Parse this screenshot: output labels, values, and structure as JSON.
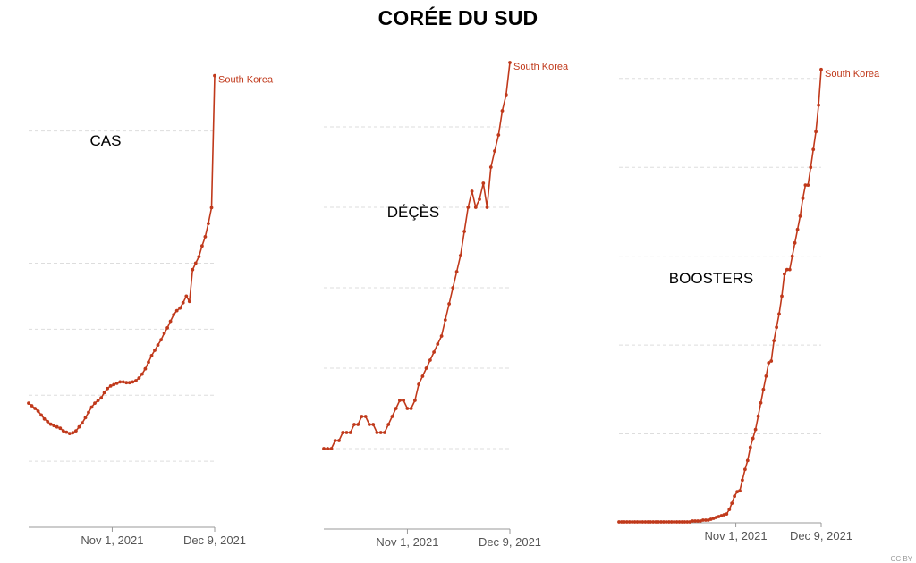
{
  "title": "CORÉE DU SUD",
  "license": "CC BY",
  "colors": {
    "line": "#c0391b",
    "grid": "#dddddd",
    "axis": "#999999"
  },
  "chart_data": [
    {
      "type": "line",
      "overlay_label": "CAS",
      "series_name": "South Korea",
      "x_start": "2021-10-01",
      "x_end": "2021-12-09",
      "tick_labels": [
        "Nov 1, 2021",
        "Dec 9, 2021"
      ],
      "tick_dates": [
        "2021-11-01",
        "2021-12-09"
      ],
      "ylim": [
        0,
        3600
      ],
      "y_grid": [
        500,
        1000,
        1500,
        2000,
        2500,
        3000
      ],
      "y_tick_labels": [],
      "grid": true,
      "values": [
        940,
        920,
        900,
        880,
        850,
        820,
        800,
        780,
        770,
        760,
        750,
        730,
        720,
        710,
        715,
        730,
        760,
        790,
        830,
        870,
        910,
        940,
        960,
        980,
        1020,
        1050,
        1070,
        1080,
        1090,
        1100,
        1100,
        1095,
        1095,
        1100,
        1110,
        1130,
        1160,
        1200,
        1250,
        1300,
        1340,
        1380,
        1420,
        1470,
        1510,
        1560,
        1610,
        1640,
        1660,
        1700,
        1750,
        1710,
        1950,
        2000,
        2050,
        2130,
        2200,
        2300,
        2420,
        3420
      ]
    },
    {
      "type": "line",
      "overlay_label": "DÉÇÈS",
      "series_name": "South Korea",
      "x_start": "2021-10-01",
      "x_end": "2021-12-09",
      "tick_labels": [
        "Nov 1, 2021",
        "Dec 9, 2021"
      ],
      "tick_dates": [
        "2021-11-01",
        "2021-12-09"
      ],
      "ylim": [
        0,
        60
      ],
      "y_grid": [
        10,
        20,
        30,
        40,
        50
      ],
      "y_tick_labels": [],
      "grid": true,
      "values": [
        10,
        10,
        10,
        11,
        11,
        12,
        12,
        12,
        13,
        13,
        14,
        14,
        13,
        13,
        12,
        12,
        12,
        13,
        14,
        15,
        16,
        16,
        15,
        15,
        16,
        18,
        19,
        20,
        21,
        22,
        23,
        24,
        26,
        28,
        30,
        32,
        34,
        37,
        40,
        42,
        40,
        41,
        43,
        40,
        45,
        47,
        49,
        52,
        54,
        58
      ]
    },
    {
      "type": "line",
      "overlay_label": "BOOSTERS",
      "series_name": "South Korea",
      "x_start": "2021-09-10",
      "x_end": "2021-12-09",
      "tick_labels": [
        "Nov 1, 2021",
        "Dec 9, 2021"
      ],
      "tick_dates": [
        "2021-11-01",
        "2021-12-09"
      ],
      "ylim": [
        0,
        5.4
      ],
      "y_grid": [
        1,
        2,
        3,
        4,
        5
      ],
      "y_tick_labels": [],
      "grid": true,
      "values": [
        0.01,
        0.01,
        0.01,
        0.01,
        0.01,
        0.01,
        0.01,
        0.01,
        0.01,
        0.01,
        0.01,
        0.01,
        0.01,
        0.01,
        0.01,
        0.01,
        0.01,
        0.01,
        0.01,
        0.01,
        0.01,
        0.01,
        0.01,
        0.01,
        0.01,
        0.01,
        0.01,
        0.01,
        0.02,
        0.02,
        0.02,
        0.02,
        0.03,
        0.03,
        0.03,
        0.04,
        0.05,
        0.06,
        0.07,
        0.08,
        0.09,
        0.1,
        0.15,
        0.22,
        0.3,
        0.35,
        0.36,
        0.48,
        0.6,
        0.7,
        0.85,
        0.95,
        1.05,
        1.2,
        1.35,
        1.5,
        1.65,
        1.8,
        1.82,
        2.05,
        2.2,
        2.35,
        2.55,
        2.8,
        2.85,
        2.85,
        3.0,
        3.15,
        3.3,
        3.45,
        3.65,
        3.8,
        3.8,
        4.0,
        4.2,
        4.4,
        4.7,
        5.1
      ]
    }
  ]
}
